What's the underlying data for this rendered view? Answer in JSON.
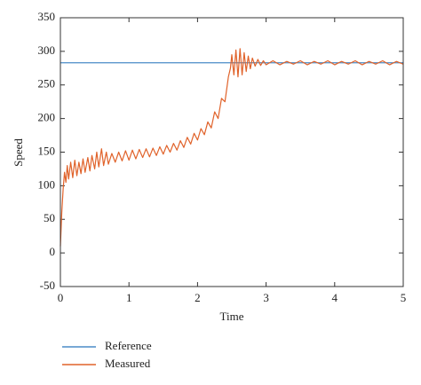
{
  "chart_data": {
    "type": "line",
    "x_label": "Time",
    "y_label": "Speed",
    "xlim": [
      0,
      5
    ],
    "xticks": [
      0,
      1,
      2,
      3,
      4,
      5
    ],
    "ylim": [
      -50,
      350
    ],
    "yticks": [
      -50,
      0,
      50,
      100,
      150,
      200,
      250,
      300,
      350
    ],
    "grid": false,
    "legend": "bottom",
    "series": [
      {
        "name": "Reference",
        "color": "#4a8cc7",
        "x": [
          0,
          5
        ],
        "values": [
          283,
          283
        ]
      },
      {
        "name": "Measured",
        "color": "#e0622a",
        "x": [
          0,
          0.02,
          0.04,
          0.06,
          0.08,
          0.1,
          0.12,
          0.15,
          0.18,
          0.21,
          0.24,
          0.27,
          0.3,
          0.33,
          0.36,
          0.4,
          0.43,
          0.46,
          0.5,
          0.53,
          0.56,
          0.6,
          0.63,
          0.67,
          0.7,
          0.75,
          0.8,
          0.85,
          0.9,
          0.95,
          1.0,
          1.05,
          1.1,
          1.15,
          1.2,
          1.25,
          1.3,
          1.35,
          1.4,
          1.45,
          1.5,
          1.55,
          1.6,
          1.65,
          1.7,
          1.75,
          1.8,
          1.85,
          1.9,
          1.95,
          2.0,
          2.05,
          2.1,
          2.15,
          2.2,
          2.25,
          2.3,
          2.35,
          2.4,
          2.45,
          2.48,
          2.5,
          2.53,
          2.56,
          2.59,
          2.62,
          2.65,
          2.68,
          2.71,
          2.74,
          2.77,
          2.8,
          2.84,
          2.88,
          2.92,
          2.96,
          3.0,
          3.1,
          3.2,
          3.3,
          3.4,
          3.5,
          3.6,
          3.7,
          3.8,
          3.9,
          4.0,
          4.1,
          4.2,
          4.3,
          4.4,
          4.5,
          4.6,
          4.7,
          4.8,
          4.9,
          5.0
        ],
        "values": [
          10,
          60,
          95,
          120,
          105,
          130,
          110,
          135,
          112,
          138,
          115,
          135,
          118,
          140,
          120,
          142,
          122,
          145,
          125,
          150,
          128,
          155,
          130,
          150,
          132,
          148,
          135,
          150,
          137,
          152,
          138,
          153,
          140,
          154,
          142,
          155,
          143,
          156,
          145,
          158,
          147,
          160,
          150,
          163,
          153,
          167,
          157,
          172,
          162,
          178,
          168,
          185,
          176,
          195,
          186,
          210,
          200,
          230,
          225,
          262,
          275,
          295,
          265,
          302,
          262,
          304,
          265,
          298,
          270,
          293,
          274,
          290,
          278,
          288,
          279,
          286,
          280,
          286,
          280,
          285,
          281,
          286,
          280,
          285,
          281,
          286,
          280,
          285,
          281,
          286,
          280,
          285,
          281,
          286,
          280,
          285,
          281
        ]
      }
    ]
  }
}
